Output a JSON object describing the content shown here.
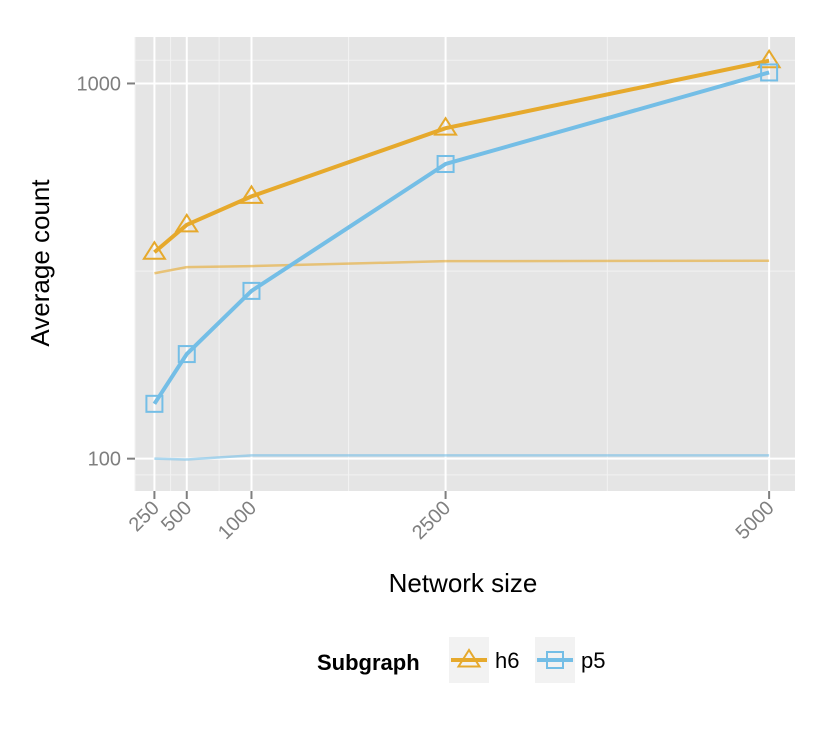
{
  "chart_data": {
    "type": "line",
    "xlabel": "Network size",
    "ylabel": "Average count",
    "x_ticks": [
      250,
      500,
      1000,
      2500,
      5000
    ],
    "x_tick_labels": [
      "250",
      "500",
      "1000",
      "2500",
      "5000"
    ],
    "xlim": [
      100,
      5200
    ],
    "y_scale": "log",
    "y_ticks": [
      100,
      1000
    ],
    "y_tick_labels": [
      "100",
      "1000"
    ],
    "ylim": [
      82,
      1330
    ],
    "grid": true,
    "legend": {
      "title": "Subgraph",
      "position": "bottom"
    },
    "series": [
      {
        "name": "h6",
        "color": "#E6A92C",
        "marker": "triangle",
        "x": [
          250,
          500,
          1000,
          2500,
          5000
        ],
        "values": [
          355,
          420,
          500,
          760,
          1150
        ]
      },
      {
        "name": "p5",
        "color": "#74BEE6",
        "marker": "square",
        "x": [
          250,
          500,
          1000,
          2500,
          5000
        ],
        "values": [
          140,
          190,
          280,
          610,
          1070
        ]
      }
    ],
    "reference_lines": [
      {
        "color": "#E6A92C",
        "x": [
          250,
          500,
          1000,
          2500,
          5000
        ],
        "values": [
          312,
          324,
          326,
          336,
          337
        ]
      },
      {
        "color": "#74BEE6",
        "x": [
          250,
          500,
          1000,
          2500,
          5000
        ],
        "values": [
          100,
          99.5,
          102,
          102,
          102
        ]
      }
    ]
  }
}
